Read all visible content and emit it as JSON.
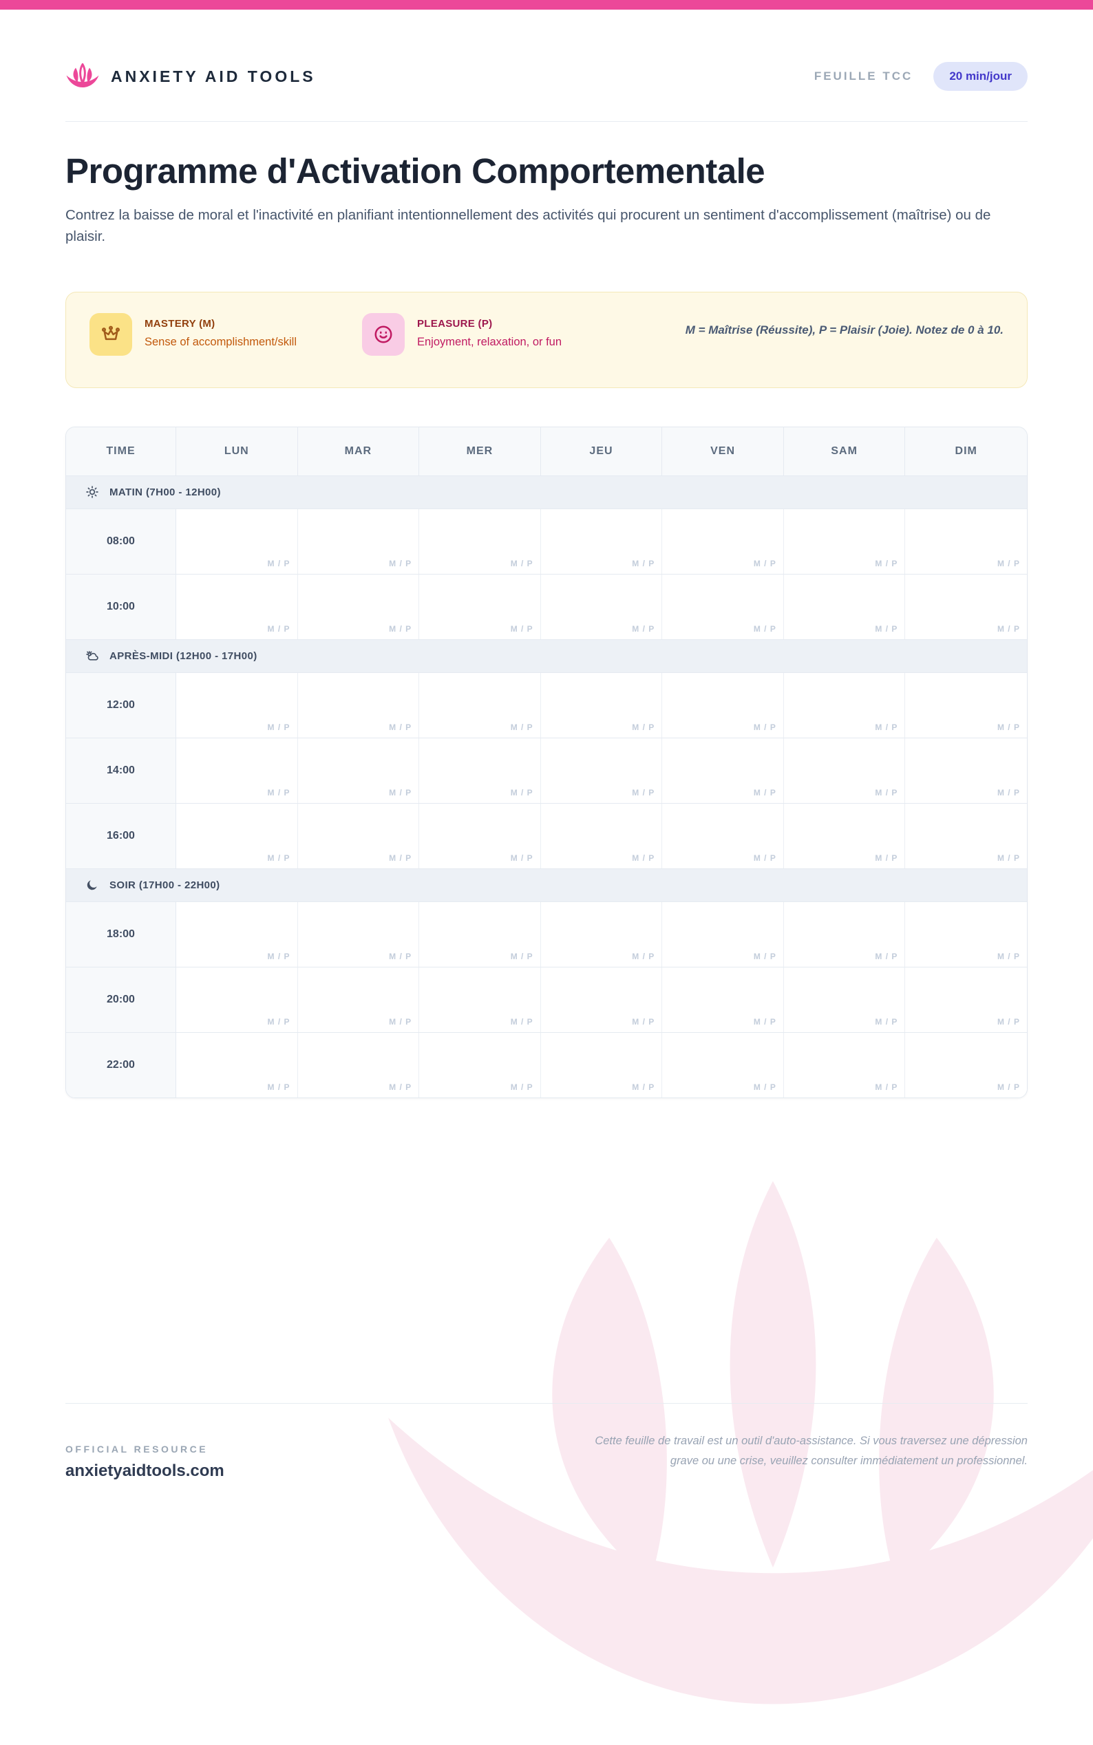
{
  "colors": {
    "accent_pink": "#EC4899",
    "badge_bg": "#E0E5FA",
    "badge_text": "#4338CA",
    "legend_bg": "#FEF9E6",
    "mastery_brown": "#92400E",
    "pleasure_pink": "#9D174D",
    "table_border": "#E3E9F0"
  },
  "header": {
    "brand": "ANXIETY AID TOOLS",
    "doc_type": "FEUILLE TCC",
    "badge": "20 min/jour",
    "logo_icon": "lotus-icon"
  },
  "title": "Programme d'Activation Comportementale",
  "subtitle": "Contrez la baisse de moral et l'inactivité en planifiant intentionnellement des activités qui procurent un sentiment d'accomplissement (maîtrise) ou de plaisir.",
  "legend": {
    "mastery": {
      "icon": "crown-icon",
      "label": "MASTERY (M)",
      "desc": "Sense of accomplishment/skill"
    },
    "pleasure": {
      "icon": "smiley-icon",
      "label": "PLEASURE (P)",
      "desc": "Enjoyment, relaxation, or fun"
    },
    "note": "M = Maîtrise (Réussite), P = Plaisir (Joie). Notez de 0 à 10."
  },
  "schedule": {
    "columns": [
      "TIME",
      "LUN",
      "MAR",
      "MER",
      "JEU",
      "VEN",
      "SAM",
      "DIM"
    ],
    "cell_marker": "M / P",
    "sections": [
      {
        "icon": "sun-icon",
        "label": "MATIN (7H00 - 12H00)",
        "times": [
          "08:00",
          "10:00"
        ]
      },
      {
        "icon": "cloud-sun-icon",
        "label": "APRÈS-MIDI (12H00 - 17H00)",
        "times": [
          "12:00",
          "14:00",
          "16:00"
        ]
      },
      {
        "icon": "moon-icon",
        "label": "SOIR (17H00 - 22H00)",
        "times": [
          "18:00",
          "20:00",
          "22:00"
        ]
      }
    ]
  },
  "footer": {
    "label": "OFFICIAL RESOURCE",
    "site": "anxietyaidtools.com",
    "disclaimer": "Cette feuille de travail est un outil d'auto-assistance. Si vous traversez une dépression grave ou une crise, veuillez consulter immédiatement un professionnel."
  }
}
